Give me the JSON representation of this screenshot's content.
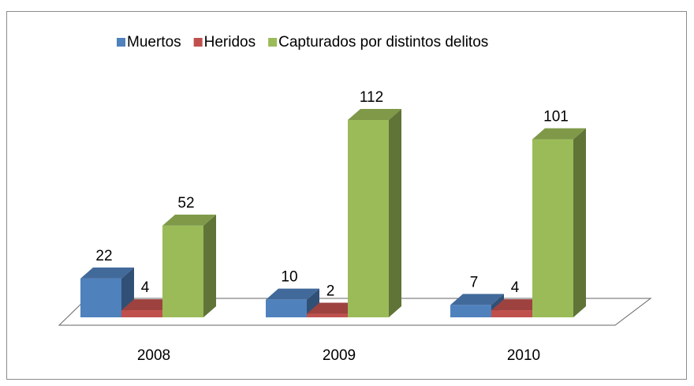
{
  "chart_data": {
    "type": "bar3d",
    "categories": [
      "2008",
      "2009",
      "2010"
    ],
    "series": [
      {
        "name": "Muertos",
        "color": "#4f81bd",
        "values": [
          22,
          10,
          7
        ]
      },
      {
        "name": "Heridos",
        "color": "#c0504d",
        "values": [
          4,
          2,
          4
        ]
      },
      {
        "name": "Capturados por distintos delitos",
        "color": "#9bbb59",
        "values": [
          52,
          112,
          101
        ]
      }
    ],
    "legend": "top"
  }
}
